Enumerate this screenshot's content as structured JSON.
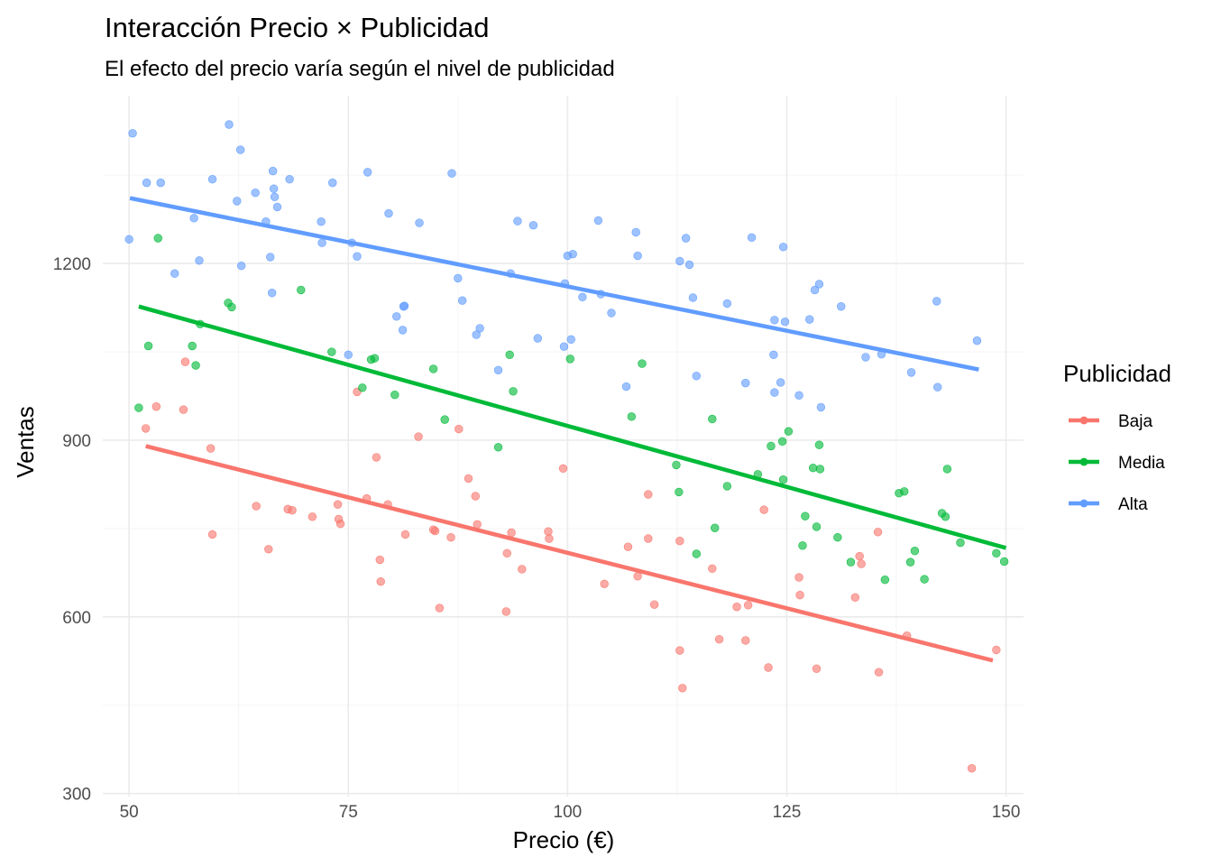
{
  "chart_data": {
    "type": "scatter",
    "title": "Interacción Precio × Publicidad",
    "subtitle": "El efecto del precio varía según el nivel de publicidad",
    "xlabel": "Precio (€)",
    "ylabel": "Ventas",
    "xlim": [
      47,
      152
    ],
    "ylim": [
      295,
      1485
    ],
    "x_ticks": [
      50,
      75,
      100,
      125,
      150
    ],
    "y_ticks": [
      300,
      600,
      900,
      1200
    ],
    "grid": true,
    "legend": {
      "title": "Publicidad",
      "position": "right"
    },
    "series": [
      {
        "name": "Baja",
        "color": "#F8766D",
        "points": [
          [
            51.9,
            920
          ],
          [
            53.1,
            957
          ],
          [
            56.2,
            952
          ],
          [
            56.4,
            1033
          ],
          [
            59.3,
            886
          ],
          [
            59.5,
            740
          ],
          [
            64.5,
            788
          ],
          [
            65.9,
            715
          ],
          [
            68.1,
            783
          ],
          [
            68.6,
            781
          ],
          [
            70.9,
            770
          ],
          [
            73.8,
            791
          ],
          [
            73.9,
            766
          ],
          [
            74.1,
            758
          ],
          [
            76.0,
            982
          ],
          [
            77.1,
            801
          ],
          [
            78.2,
            871
          ],
          [
            78.6,
            697
          ],
          [
            78.7,
            660
          ],
          [
            79.5,
            791
          ],
          [
            81.5,
            740
          ],
          [
            83.0,
            906
          ],
          [
            84.7,
            748
          ],
          [
            84.9,
            746
          ],
          [
            85.4,
            615
          ],
          [
            86.7,
            735
          ],
          [
            87.6,
            919
          ],
          [
            88.7,
            835
          ],
          [
            89.5,
            805
          ],
          [
            89.7,
            757
          ],
          [
            93.0,
            609
          ],
          [
            93.1,
            708
          ],
          [
            93.6,
            743
          ],
          [
            94.8,
            681
          ],
          [
            97.8,
            745
          ],
          [
            97.9,
            733
          ],
          [
            99.5,
            852
          ],
          [
            104.2,
            656
          ],
          [
            106.9,
            719
          ],
          [
            108.0,
            669
          ],
          [
            109.2,
            808
          ],
          [
            109.2,
            733
          ],
          [
            109.9,
            621
          ],
          [
            112.8,
            543
          ],
          [
            112.8,
            729
          ],
          [
            113.1,
            479
          ],
          [
            116.5,
            682
          ],
          [
            117.3,
            562
          ],
          [
            119.3,
            617
          ],
          [
            120.3,
            560
          ],
          [
            120.6,
            620
          ],
          [
            122.4,
            782
          ],
          [
            122.9,
            514
          ],
          [
            126.4,
            667
          ],
          [
            126.5,
            637
          ],
          [
            128.4,
            512
          ],
          [
            132.8,
            633
          ],
          [
            133.3,
            703
          ],
          [
            133.5,
            690
          ],
          [
            135.4,
            744
          ],
          [
            135.5,
            506
          ],
          [
            138.7,
            568
          ],
          [
            146.1,
            343
          ],
          [
            148.9,
            544
          ]
        ],
        "trend": [
          [
            51.9,
            890
          ],
          [
            148.5,
            526
          ]
        ]
      },
      {
        "name": "Media",
        "color": "#00BA38",
        "points": [
          [
            51.1,
            955
          ],
          [
            52.2,
            1060
          ],
          [
            53.3,
            1243
          ],
          [
            57.2,
            1060
          ],
          [
            57.6,
            1027
          ],
          [
            58.1,
            1097
          ],
          [
            61.3,
            1133
          ],
          [
            61.7,
            1126
          ],
          [
            69.6,
            1155
          ],
          [
            73.1,
            1050
          ],
          [
            76.6,
            989
          ],
          [
            77.6,
            1037
          ],
          [
            78.0,
            1039
          ],
          [
            80.3,
            977
          ],
          [
            84.7,
            1021
          ],
          [
            86.0,
            935
          ],
          [
            92.1,
            888
          ],
          [
            93.4,
            1045
          ],
          [
            93.8,
            983
          ],
          [
            100.3,
            1038
          ],
          [
            107.3,
            940
          ],
          [
            108.5,
            1030
          ],
          [
            112.4,
            858
          ],
          [
            112.7,
            812
          ],
          [
            114.7,
            707
          ],
          [
            116.5,
            936
          ],
          [
            116.8,
            751
          ],
          [
            118.2,
            822
          ],
          [
            121.7,
            842
          ],
          [
            123.2,
            890
          ],
          [
            124.5,
            898
          ],
          [
            124.6,
            833
          ],
          [
            125.2,
            915
          ],
          [
            126.8,
            721
          ],
          [
            127.1,
            771
          ],
          [
            128.0,
            853
          ],
          [
            128.4,
            753
          ],
          [
            128.7,
            892
          ],
          [
            128.8,
            851
          ],
          [
            130.8,
            735
          ],
          [
            132.3,
            693
          ],
          [
            136.2,
            663
          ],
          [
            137.8,
            810
          ],
          [
            138.4,
            813
          ],
          [
            139.1,
            693
          ],
          [
            139.6,
            712
          ],
          [
            140.7,
            664
          ],
          [
            142.7,
            776
          ],
          [
            143.1,
            770
          ],
          [
            143.3,
            851
          ],
          [
            144.8,
            726
          ],
          [
            148.9,
            708
          ],
          [
            149.8,
            694
          ]
        ],
        "trend": [
          [
            51.1,
            1127
          ],
          [
            150.0,
            717
          ]
        ]
      },
      {
        "name": "Alta",
        "color": "#619CFF",
        "points": [
          [
            50.0,
            1241
          ],
          [
            50.4,
            1421
          ],
          [
            52.0,
            1337
          ],
          [
            53.6,
            1337
          ],
          [
            55.2,
            1183
          ],
          [
            57.4,
            1277
          ],
          [
            58.0,
            1205
          ],
          [
            59.5,
            1343
          ],
          [
            61.4,
            1436
          ],
          [
            62.3,
            1306
          ],
          [
            62.7,
            1393
          ],
          [
            62.8,
            1196
          ],
          [
            64.4,
            1320
          ],
          [
            65.6,
            1271
          ],
          [
            66.1,
            1211
          ],
          [
            66.3,
            1150
          ],
          [
            66.4,
            1357
          ],
          [
            66.5,
            1327
          ],
          [
            66.6,
            1313
          ],
          [
            66.9,
            1296
          ],
          [
            68.3,
            1343
          ],
          [
            71.9,
            1271
          ],
          [
            72.0,
            1235
          ],
          [
            73.2,
            1337
          ],
          [
            75.0,
            1045
          ],
          [
            75.4,
            1235
          ],
          [
            76.0,
            1212
          ],
          [
            77.2,
            1355
          ],
          [
            79.6,
            1285
          ],
          [
            80.5,
            1110
          ],
          [
            81.2,
            1087
          ],
          [
            81.3,
            1127
          ],
          [
            81.4,
            1128
          ],
          [
            83.1,
            1269
          ],
          [
            86.8,
            1353
          ],
          [
            87.5,
            1175
          ],
          [
            88.0,
            1137
          ],
          [
            89.6,
            1079
          ],
          [
            90.0,
            1090
          ],
          [
            92.1,
            1019
          ],
          [
            93.5,
            1183
          ],
          [
            94.3,
            1272
          ],
          [
            96.1,
            1265
          ],
          [
            96.6,
            1073
          ],
          [
            99.6,
            1059
          ],
          [
            99.7,
            1166
          ],
          [
            100.0,
            1213
          ],
          [
            100.4,
            1071
          ],
          [
            100.6,
            1216
          ],
          [
            101.7,
            1143
          ],
          [
            103.5,
            1273
          ],
          [
            103.8,
            1148
          ],
          [
            105.0,
            1116
          ],
          [
            106.7,
            991
          ],
          [
            107.8,
            1253
          ],
          [
            108.0,
            1213
          ],
          [
            112.8,
            1204
          ],
          [
            113.5,
            1243
          ],
          [
            113.9,
            1198
          ],
          [
            114.3,
            1142
          ],
          [
            114.7,
            1009
          ],
          [
            118.2,
            1132
          ],
          [
            120.3,
            997
          ],
          [
            121.0,
            1244
          ],
          [
            123.5,
            1045
          ],
          [
            123.6,
            1104
          ],
          [
            123.6,
            981
          ],
          [
            124.3,
            998
          ],
          [
            124.6,
            1228
          ],
          [
            124.8,
            1101
          ],
          [
            126.4,
            976
          ],
          [
            127.6,
            1105
          ],
          [
            128.2,
            1155
          ],
          [
            128.7,
            1165
          ],
          [
            128.9,
            956
          ],
          [
            131.2,
            1127
          ],
          [
            134.0,
            1041
          ],
          [
            135.8,
            1046
          ],
          [
            139.2,
            1015
          ],
          [
            142.1,
            1136
          ],
          [
            142.2,
            990
          ],
          [
            146.7,
            1069
          ]
        ],
        "trend": [
          [
            50.1,
            1311
          ],
          [
            146.9,
            1020
          ]
        ]
      }
    ]
  }
}
